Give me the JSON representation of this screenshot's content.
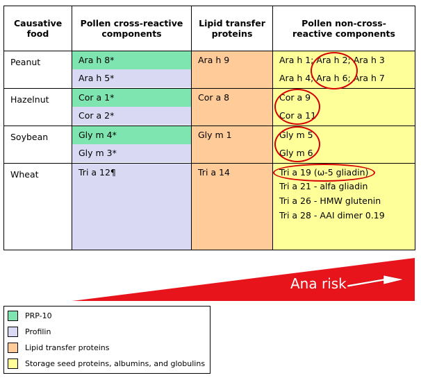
{
  "headers": [
    "Causative food",
    "Pollen cross-reactive components",
    "Lipid transfer proteins",
    "Pollen non-cross-reactive components"
  ],
  "rows": [
    {
      "food": "Peanut",
      "pollen": [
        "Ara h 8*",
        "Ara h 5*"
      ],
      "ltp": "Ara h 9",
      "noncross": [
        "Ara h 1; Ara h 2; Ara h 3",
        "Ara h 4; Ara h 6; Ara h 7"
      ]
    },
    {
      "food": "Hazelnut",
      "pollen": [
        "Cor a 1*",
        "Cor a 2*"
      ],
      "ltp": "Cor a 8",
      "noncross": [
        "Cor a 9",
        "Cor a 11"
      ]
    },
    {
      "food": "Soybean",
      "pollen": [
        "Gly m 4*",
        "Gly m 3*"
      ],
      "ltp": "Gly m 1",
      "noncross": [
        "Gly m 5",
        "Gly m 6"
      ]
    },
    {
      "food": "Wheat",
      "pollen": [
        "Tri a 12¶"
      ],
      "ltp": "Tri a 14",
      "noncross": [
        "Tri a 19 (ω-5 gliadin)",
        "Tri a 21 - alfa gliadin",
        "Tri a 26 - HMW glutenin",
        "Tri a 28 - AAI dimer 0.19"
      ]
    }
  ],
  "risk_label": "Ana risk",
  "legend": [
    {
      "color": "#7fe5b0",
      "label": "PRP-10"
    },
    {
      "color": "#d9d9f3",
      "label": "Profilin"
    },
    {
      "color": "#ffcc99",
      "label": "Lipid transfer proteins"
    },
    {
      "color": "#ffff99",
      "label": "Storage seed proteins, albumins, and globulins"
    }
  ],
  "colors": {
    "pr10": "#7fe5b0",
    "profilin": "#d9d9f3",
    "ltp": "#ffcc99",
    "storage": "#ffff99",
    "risk": "#e8141c",
    "highlight": "#d40000"
  }
}
